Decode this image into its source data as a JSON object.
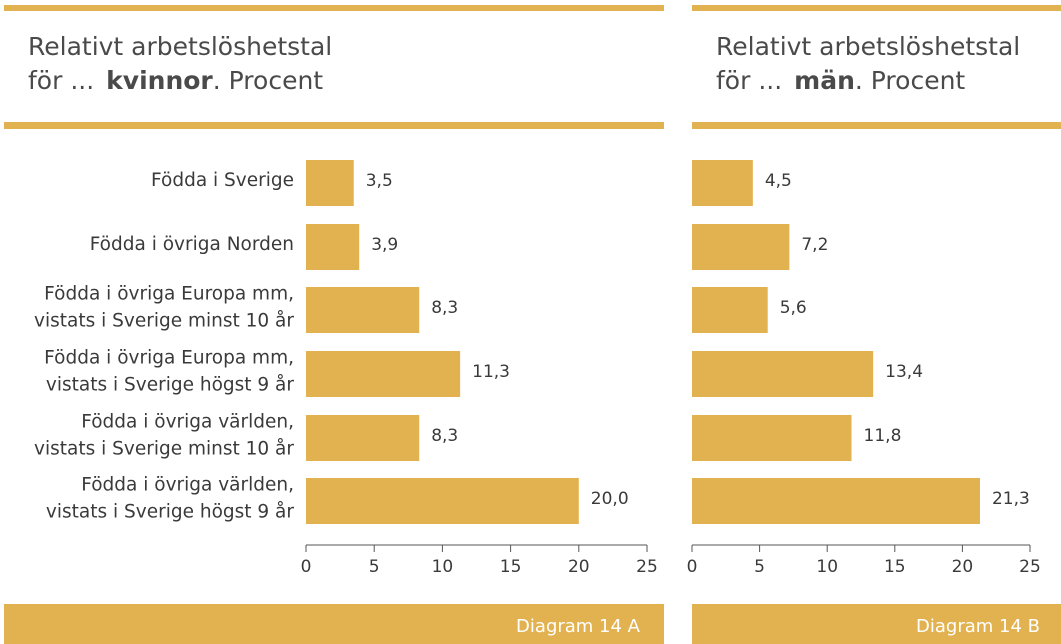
{
  "chart_data": [
    {
      "type": "barh",
      "title": {
        "line1": "Relativt arbetslöshetstal",
        "prefix": "för  ...",
        "emphasis": "kvinnor",
        "suffix": ". Procent"
      },
      "categories": [
        [
          "Födda i Sverige"
        ],
        [
          "Födda i övriga Norden"
        ],
        [
          "Födda i övriga Europa mm,",
          "vistats i Sverige minst 10 år"
        ],
        [
          "Födda i övriga Europa mm,",
          "vistats i Sverige högst 9 år"
        ],
        [
          "Födda i övriga världen,",
          "vistats i Sverige minst 10 år"
        ],
        [
          "Födda i övriga världen,",
          "vistats i Sverige högst 9 år"
        ]
      ],
      "values": [
        3.5,
        3.9,
        8.3,
        11.3,
        8.3,
        20.0
      ],
      "value_labels": [
        "3,5",
        "3,9",
        "8,3",
        "11,3",
        "8,3",
        "20,0"
      ],
      "color": "#e3b250",
      "xlim": [
        0,
        25
      ],
      "xticks": [
        0,
        5,
        10,
        15,
        20,
        25
      ],
      "footer": "Diagram 14 A"
    },
    {
      "type": "barh",
      "title": {
        "line1": "Relativt arbetslöshetstal",
        "prefix": "för  ...",
        "emphasis": "män",
        "suffix": ". Procent"
      },
      "values": [
        4.5,
        7.2,
        5.6,
        13.4,
        11.8,
        21.3
      ],
      "value_labels": [
        "4,5",
        "7,2",
        "5,6",
        "13,4",
        "11,8",
        "21,3"
      ],
      "color": "#e3b250",
      "xlim": [
        0,
        25
      ],
      "xticks": [
        0,
        5,
        10,
        15,
        20,
        25
      ],
      "footer": "Diagram 14 B"
    }
  ]
}
